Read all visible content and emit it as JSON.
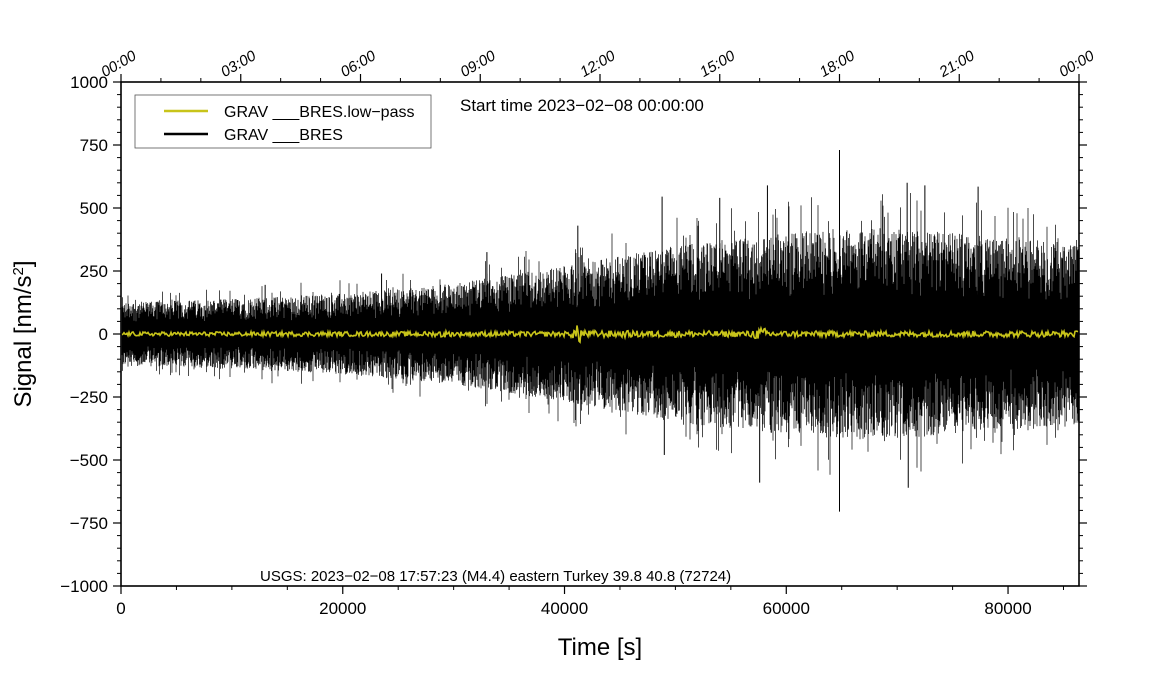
{
  "chart_data": {
    "type": "line",
    "title": "",
    "xlabel": "Time [s]",
    "ylabel": "Signal [nm/s",
    "ylabel_sup": "2",
    "ylabel_end": "]",
    "xlim": [
      0,
      86400
    ],
    "ylim": [
      -1000,
      1000
    ],
    "y_ticks": [
      1000,
      750,
      500,
      250,
      0,
      -250,
      -500,
      -750,
      -1000
    ],
    "y_tick_labels": [
      "1000",
      "750",
      "500",
      "250",
      "0",
      "−250",
      "−500",
      "−750",
      "−1000"
    ],
    "x_ticks": [
      0,
      20000,
      40000,
      60000,
      80000
    ],
    "x_tick_labels": [
      "0",
      "20000",
      "40000",
      "60000",
      "80000"
    ],
    "top_axis_hours": [
      0,
      3,
      6,
      9,
      12,
      15,
      18,
      21,
      24
    ],
    "top_axis_labels": [
      "00:00",
      "03:00",
      "06:00",
      "09:00",
      "12:00",
      "15:00",
      "18:00",
      "21:00",
      "00:00"
    ],
    "start_time_label": "Start time 2023−02−08 00:00:00",
    "event_annotation": "USGS: 2023−02−08 17:57:23 (M4.4) eastern Turkey 39.8 40.8 (72724)",
    "grid": false,
    "legend_position": "top-left",
    "series": [
      {
        "name": "GRAV ___BRES.low−pass",
        "color": "#c8c41a",
        "description": "low-pass filtered signal, near zero",
        "noise_envelope": [
          {
            "x": 0,
            "amp": 8
          },
          {
            "x": 28500,
            "amp": 10
          },
          {
            "x": 29000,
            "amp": 18
          },
          {
            "x": 29500,
            "amp": 10
          },
          {
            "x": 40500,
            "amp": 10
          },
          {
            "x": 41300,
            "amp": 42
          },
          {
            "x": 42000,
            "amp": 14
          },
          {
            "x": 56500,
            "amp": 12
          },
          {
            "x": 57800,
            "amp": 26
          },
          {
            "x": 59000,
            "amp": 12
          },
          {
            "x": 86400,
            "amp": 12
          }
        ]
      },
      {
        "name": "GRAV ___BRES",
        "color": "#000000",
        "description": "raw signal, amplitude envelope",
        "noise_envelope": [
          {
            "x": 0,
            "amp": 125
          },
          {
            "x": 10000,
            "amp": 140
          },
          {
            "x": 20000,
            "amp": 160
          },
          {
            "x": 30000,
            "amp": 200
          },
          {
            "x": 40000,
            "amp": 270
          },
          {
            "x": 50000,
            "amp": 350
          },
          {
            "x": 60000,
            "amp": 400
          },
          {
            "x": 65000,
            "amp": 420
          },
          {
            "x": 70000,
            "amp": 420
          },
          {
            "x": 80000,
            "amp": 380
          },
          {
            "x": 86400,
            "amp": 360
          }
        ],
        "spikes": [
          {
            "x": 41200,
            "y": 430
          },
          {
            "x": 48800,
            "y": 545
          },
          {
            "x": 58300,
            "y": 590
          },
          {
            "x": 64800,
            "y": 730
          },
          {
            "x": 64800,
            "y": -705
          },
          {
            "x": 70900,
            "y": 600
          },
          {
            "x": 72500,
            "y": 590
          },
          {
            "x": 77300,
            "y": 585
          },
          {
            "x": 54000,
            "y": 540
          },
          {
            "x": 49000,
            "y": -480
          },
          {
            "x": 57600,
            "y": -590
          },
          {
            "x": 71000,
            "y": -610
          },
          {
            "x": 13000,
            "y": 195
          },
          {
            "x": 23500,
            "y": 240
          },
          {
            "x": 33000,
            "y": 325
          }
        ]
      }
    ]
  }
}
